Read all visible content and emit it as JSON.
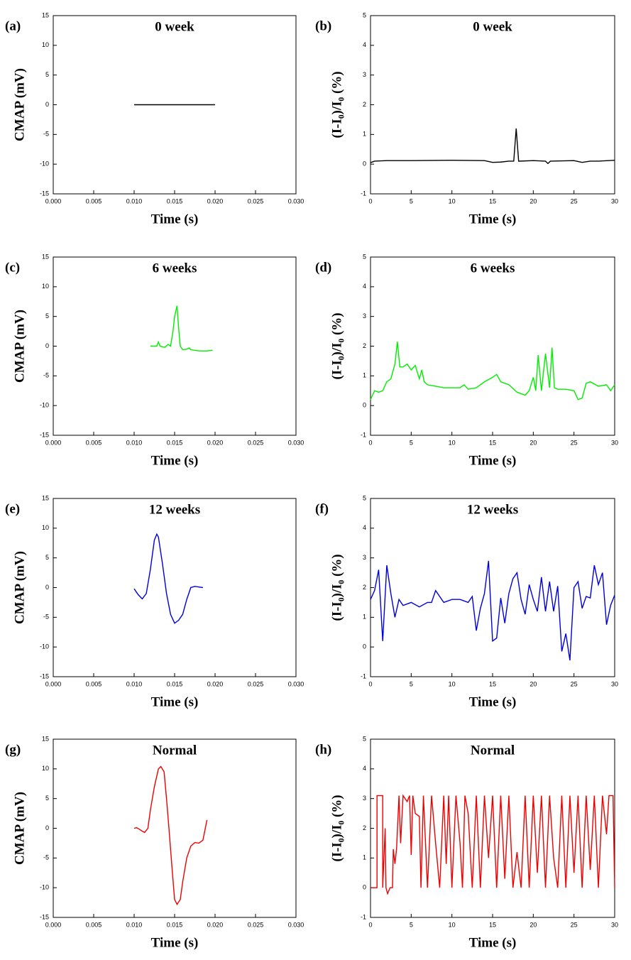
{
  "chart_data": [
    {
      "type": "line",
      "panel_label": "(a)",
      "title": "0 week",
      "x_label": "Time (s)",
      "y_label": "CMAP (mV)",
      "color": "#000000",
      "x": [
        0.01,
        0.0125,
        0.015,
        0.0175,
        0.02
      ],
      "values": [
        0,
        0,
        0,
        0,
        0
      ],
      "xlim": [
        0,
        0.03
      ],
      "xticks": [
        {
          "value": 0,
          "label": "0.000"
        },
        {
          "value": 0.005,
          "label": "0.005"
        },
        {
          "value": 0.01,
          "label": "0.010"
        },
        {
          "value": 0.015,
          "label": "0.015"
        },
        {
          "value": 0.02,
          "label": "0.020"
        },
        {
          "value": 0.025,
          "label": "0.025"
        },
        {
          "value": 0.03,
          "label": "0.030"
        }
      ],
      "ylim": [
        -15,
        15
      ],
      "yticks": [
        -15,
        -10,
        -5,
        0,
        5,
        10,
        15
      ]
    },
    {
      "type": "line",
      "panel_label": "(b)",
      "title": "0 week",
      "x_label": "Time (s)",
      "y_label": "(I-I₀)/I₀ (%)",
      "color": "#000000",
      "x": [
        0,
        0.5,
        2,
        5,
        10,
        14,
        15,
        16,
        17,
        17.6,
        17.9,
        18.2,
        20,
        21.5,
        21.8,
        22.1,
        25,
        26,
        27,
        28,
        30
      ],
      "values": [
        0.05,
        0.1,
        0.12,
        0.12,
        0.13,
        0.12,
        0.06,
        0.07,
        0.1,
        0.1,
        1.2,
        0.1,
        0.12,
        0.1,
        0.02,
        0.1,
        0.12,
        0.06,
        0.1,
        0.1,
        0.13
      ],
      "xlim": [
        0,
        30
      ],
      "xticks": [
        0,
        5,
        10,
        15,
        20,
        25,
        30
      ],
      "ylim": [
        -1,
        5
      ],
      "yticks": [
        -1,
        0,
        1,
        2,
        3,
        4,
        5
      ]
    },
    {
      "type": "line",
      "panel_label": "(c)",
      "title": "6 weeks",
      "x_label": "Time (s)",
      "y_label": "CMAP (mV)",
      "color": "#00ee00",
      "x": [
        0.012,
        0.0128,
        0.013,
        0.0132,
        0.0138,
        0.0142,
        0.0145,
        0.0148,
        0.015,
        0.0153,
        0.0155,
        0.0157,
        0.016,
        0.0165,
        0.0168,
        0.017,
        0.018,
        0.019,
        0.0197
      ],
      "values": [
        0,
        0,
        0.7,
        0,
        -0.2,
        0.3,
        0,
        2.5,
        5,
        6.8,
        3,
        0,
        -0.6,
        -0.5,
        -0.3,
        -0.6,
        -0.8,
        -0.8,
        -0.7
      ],
      "xlim": [
        0,
        0.03
      ],
      "xticks": [
        {
          "value": 0,
          "label": "0.000"
        },
        {
          "value": 0.005,
          "label": "0.005"
        },
        {
          "value": 0.01,
          "label": "0.010"
        },
        {
          "value": 0.015,
          "label": "0.015"
        },
        {
          "value": 0.02,
          "label": "0.020"
        },
        {
          "value": 0.025,
          "label": "0.025"
        },
        {
          "value": 0.03,
          "label": "0.030"
        }
      ],
      "ylim": [
        -15,
        15
      ],
      "yticks": [
        -15,
        -10,
        -5,
        0,
        5,
        10,
        15
      ]
    },
    {
      "type": "line",
      "panel_label": "(d)",
      "title": "6 weeks",
      "x_label": "Time (s)",
      "y_label": "(I-I₀)/I₀ (%)",
      "color": "#00ee00",
      "x": [
        0,
        0.5,
        1,
        1.5,
        2,
        2.5,
        3,
        3.3,
        3.6,
        4,
        4.5,
        5,
        5.5,
        6,
        6.3,
        6.6,
        7,
        8,
        9,
        10,
        11,
        11.5,
        12,
        13,
        14,
        15,
        15.5,
        16,
        17,
        18,
        18.5,
        19,
        19.5,
        20,
        20.3,
        20.6,
        21,
        21.5,
        22,
        22.3,
        22.6,
        23,
        24,
        25,
        25.5,
        26,
        26.5,
        27,
        28,
        29,
        29.5,
        30
      ],
      "values": [
        0.2,
        0.5,
        0.45,
        0.5,
        0.8,
        0.9,
        1.4,
        2.15,
        1.3,
        1.3,
        1.4,
        1.2,
        1.35,
        0.9,
        1.2,
        0.8,
        0.7,
        0.65,
        0.6,
        0.6,
        0.6,
        0.7,
        0.55,
        0.6,
        0.8,
        0.95,
        1.05,
        0.8,
        0.7,
        0.45,
        0.4,
        0.35,
        0.5,
        0.95,
        0.5,
        1.7,
        0.5,
        1.75,
        0.6,
        1.95,
        0.6,
        0.55,
        0.55,
        0.5,
        0.2,
        0.25,
        0.75,
        0.8,
        0.65,
        0.7,
        0.5,
        0.7
      ],
      "xlim": [
        0,
        30
      ],
      "xticks": [
        0,
        5,
        10,
        15,
        20,
        25,
        30
      ],
      "ylim": [
        -1,
        5
      ],
      "yticks": [
        -1,
        0,
        1,
        2,
        3,
        4,
        5
      ]
    },
    {
      "type": "line",
      "panel_label": "(e)",
      "title": "12 weeks",
      "x_label": "Time (s)",
      "y_label": "CMAP (mV)",
      "color": "#0000dd",
      "x": [
        0.01,
        0.0105,
        0.011,
        0.0115,
        0.012,
        0.0125,
        0.0128,
        0.013,
        0.0135,
        0.014,
        0.0145,
        0.015,
        0.0155,
        0.016,
        0.0165,
        0.017,
        0.0175,
        0.018,
        0.0185
      ],
      "values": [
        -0.2,
        -1.2,
        -1.9,
        -1,
        3,
        8,
        9,
        8.5,
        4,
        -1,
        -4.5,
        -6,
        -5.5,
        -4.5,
        -2,
        0,
        0.2,
        0.1,
        0
      ],
      "xlim": [
        0,
        0.03
      ],
      "xticks": [
        {
          "value": 0,
          "label": "0.000"
        },
        {
          "value": 0.005,
          "label": "0.005"
        },
        {
          "value": 0.01,
          "label": "0.010"
        },
        {
          "value": 0.015,
          "label": "0.015"
        },
        {
          "value": 0.02,
          "label": "0.020"
        },
        {
          "value": 0.025,
          "label": "0.025"
        },
        {
          "value": 0.03,
          "label": "0.030"
        }
      ],
      "ylim": [
        -15,
        15
      ],
      "yticks": [
        -15,
        -10,
        -5,
        0,
        5,
        10,
        15
      ]
    },
    {
      "type": "line",
      "panel_label": "(f)",
      "title": "12 weeks",
      "x_label": "Time (s)",
      "y_label": "(I-I₀)/I₀ (%)",
      "color": "#0000dd",
      "x": [
        0,
        0.5,
        1,
        1.5,
        2,
        2.5,
        3,
        3.5,
        4,
        5,
        6,
        7,
        7.5,
        8,
        9,
        10,
        11,
        12,
        12.5,
        13,
        13.5,
        14,
        14.5,
        15,
        15.5,
        16,
        16.5,
        17,
        17.5,
        18,
        18.5,
        19,
        19.5,
        20,
        20.5,
        21,
        21.5,
        22,
        22.5,
        23,
        23.5,
        24,
        24.5,
        25,
        25.5,
        26,
        26.5,
        27,
        27.5,
        28,
        28.5,
        29,
        29.5,
        30
      ],
      "values": [
        1.6,
        1.9,
        2.6,
        0.2,
        2.75,
        1.8,
        1.0,
        1.6,
        1.4,
        1.5,
        1.35,
        1.5,
        1.5,
        1.9,
        1.5,
        1.6,
        1.6,
        1.5,
        1.7,
        0.55,
        1.3,
        1.8,
        2.9,
        0.2,
        0.3,
        1.65,
        0.8,
        1.8,
        2.3,
        2.5,
        1.6,
        1.1,
        2.1,
        1.6,
        1.2,
        2.35,
        1.2,
        2.2,
        1.2,
        2.05,
        -0.15,
        0.45,
        -0.45,
        2.0,
        2.2,
        1.3,
        1.7,
        1.65,
        2.75,
        2.1,
        2.5,
        0.75,
        1.4,
        1.75
      ],
      "xlim": [
        0,
        30
      ],
      "xticks": [
        0,
        5,
        10,
        15,
        20,
        25,
        30
      ],
      "ylim": [
        -1,
        5
      ],
      "yticks": [
        -1,
        0,
        1,
        2,
        3,
        4,
        5
      ]
    },
    {
      "type": "line",
      "panel_label": "(g)",
      "title": "Normal",
      "x_label": "Time (s)",
      "y_label": "CMAP (mV)",
      "color": "#ee0000",
      "x": [
        0.01,
        0.0103,
        0.0107,
        0.011,
        0.0113,
        0.0117,
        0.012,
        0.0125,
        0.013,
        0.0133,
        0.0137,
        0.014,
        0.0143,
        0.0147,
        0.015,
        0.0153,
        0.0157,
        0.016,
        0.0165,
        0.017,
        0.0175,
        0.018,
        0.0185,
        0.019
      ],
      "values": [
        0,
        0.1,
        -0.2,
        -0.5,
        -0.7,
        0,
        3,
        7,
        10,
        10.4,
        9.5,
        5,
        0,
        -7,
        -12,
        -12.8,
        -12,
        -9,
        -5,
        -3,
        -2.4,
        -2.5,
        -2,
        1.4
      ],
      "xlim": [
        0,
        0.03
      ],
      "xticks": [
        {
          "value": 0,
          "label": "0.000"
        },
        {
          "value": 0.005,
          "label": "0.005"
        },
        {
          "value": 0.01,
          "label": "0.010"
        },
        {
          "value": 0.015,
          "label": "0.015"
        },
        {
          "value": 0.02,
          "label": "0.020"
        },
        {
          "value": 0.025,
          "label": "0.025"
        },
        {
          "value": 0.03,
          "label": "0.030"
        }
      ],
      "ylim": [
        -15,
        15
      ],
      "yticks": [
        -15,
        -10,
        -5,
        0,
        5,
        10,
        15
      ]
    },
    {
      "type": "line",
      "panel_label": "(h)",
      "title": "Normal",
      "x_label": "Time (s)",
      "y_label": "(I-I₀)/I₀ (%)",
      "color": "#ee0000",
      "x": [
        0,
        0.8,
        0.8,
        1.5,
        1.5,
        1.8,
        1.9,
        2.1,
        2.4,
        2.7,
        2.8,
        3.0,
        3.2,
        3.5,
        3.7,
        4,
        4.5,
        4.8,
        5,
        5.2,
        5.5,
        6,
        6.2,
        6.5,
        7,
        7.5,
        8,
        8.5,
        9,
        9.3,
        9.6,
        10,
        10.5,
        11,
        11.3,
        11.6,
        12,
        12.5,
        13,
        13.5,
        14,
        14.5,
        15,
        15.5,
        16,
        16.5,
        17,
        17.5,
        18,
        18.5,
        19,
        19.5,
        20,
        20.5,
        21,
        21.5,
        22,
        22.5,
        23,
        23.5,
        24,
        24.5,
        25,
        25.5,
        26,
        26.5,
        27,
        27.5,
        28,
        28.5,
        29,
        29.3,
        29.8,
        30
      ],
      "values": [
        0,
        0,
        3.1,
        3.1,
        0,
        2.0,
        0,
        -0.2,
        0,
        0,
        1.3,
        0.8,
        1.3,
        3.1,
        1.5,
        3.1,
        2.9,
        3.1,
        1.1,
        3.1,
        2.5,
        2.4,
        0,
        3.1,
        0,
        3.1,
        1.5,
        0,
        3.1,
        0.8,
        3.1,
        0,
        3.1,
        1.5,
        0,
        3.1,
        2.5,
        0,
        3.1,
        0,
        3.1,
        1.0,
        3.1,
        0,
        3.1,
        0.3,
        3.1,
        0,
        1.2,
        0,
        3.1,
        0,
        3.1,
        0.5,
        3.1,
        0,
        3.1,
        1.0,
        0,
        3.1,
        0,
        3.1,
        0.5,
        3.1,
        0,
        3.1,
        0.6,
        3.1,
        0,
        3.1,
        1.8,
        3.1,
        3.1,
        0
      ],
      "xlim": [
        0,
        30
      ],
      "xticks": [
        0,
        5,
        10,
        15,
        20,
        25,
        30
      ],
      "ylim": [
        -1,
        5
      ],
      "yticks": [
        -1,
        0,
        1,
        2,
        3,
        4,
        5
      ]
    }
  ]
}
